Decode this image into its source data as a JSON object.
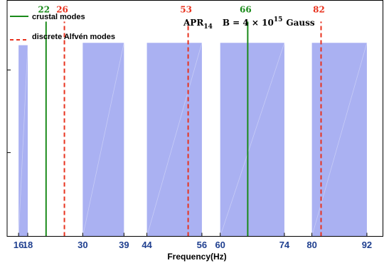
{
  "chart_data": {
    "type": "bar",
    "title": {
      "prefix": "APR",
      "subscript": "14",
      "field_text": "B = 4 × 10",
      "superscript": "15",
      "unit": "Gauss"
    },
    "xlabel": "Frequency(Hz)",
    "ylabel": "",
    "xlim": [
      13.5,
      95.5
    ],
    "ylim": [
      0,
      1
    ],
    "xticks": [
      "16",
      "18",
      "30",
      "39",
      "44",
      "56",
      "60",
      "74",
      "80",
      "92"
    ],
    "bands": [
      {
        "x0": 16,
        "x1": 18,
        "height": 0.81
      },
      {
        "x0": 30,
        "x1": 39,
        "height": 0.82
      },
      {
        "x0": 44,
        "x1": 56,
        "height": 0.82
      },
      {
        "x0": 60,
        "x1": 74,
        "height": 0.82
      },
      {
        "x0": 80,
        "x1": 92,
        "height": 0.82
      }
    ],
    "series": [
      {
        "name": "crustal modes",
        "style": "solid",
        "color": "#1a8a1a",
        "lines": [
          {
            "x": 22,
            "label": "22"
          },
          {
            "x": 66,
            "label": "66"
          }
        ]
      },
      {
        "name": "discrete Alfvén modes",
        "style": "dashed",
        "color": "#e8321e",
        "lines": [
          {
            "x": 26,
            "label": "26"
          },
          {
            "x": 53,
            "label": "53"
          },
          {
            "x": 82,
            "label": "82"
          }
        ]
      }
    ],
    "line_height": 0.91,
    "band_color": "#aab1f2",
    "legend_position": "top-left"
  }
}
